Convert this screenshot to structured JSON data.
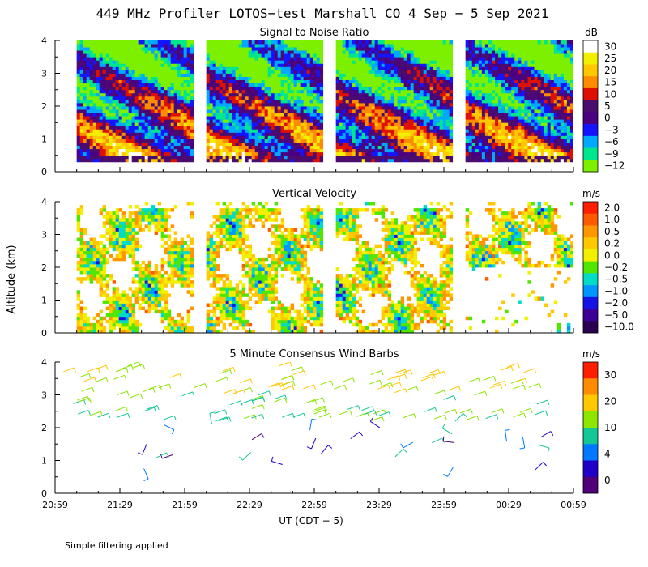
{
  "figure": {
    "title": "449 MHz Profiler LOTOS−test Marshall CO  4 Sep −  5 Sep 2021",
    "ylabel": "Altitude (km)",
    "xlabel": "UT  (CDT − 5)",
    "footnote": "Simple filtering applied"
  },
  "chart_data": [
    {
      "type": "heatmap",
      "title": "Signal to Noise Ratio",
      "unit": "dB",
      "x_ticks": [
        "20:59",
        "21:29",
        "21:59",
        "22:29",
        "22:59",
        "23:29",
        "23:59",
        "00:29",
        "00:59"
      ],
      "y_ticks": [
        "0",
        "1",
        "2",
        "3",
        "4"
      ],
      "ylim": [
        0,
        4
      ],
      "x_range_minutes": [
        0,
        240
      ],
      "data_blocks_minutes": [
        [
          10,
          64
        ],
        [
          70,
          124
        ],
        [
          130,
          184
        ],
        [
          190,
          244
        ]
      ],
      "colorbar": {
        "labels": [
          "30",
          "25",
          "20",
          "15",
          "10",
          "5",
          "0",
          "−3",
          "−6",
          "−9",
          "−12"
        ],
        "colors": [
          "#ffffff",
          "#f0f000",
          "#ffc800",
          "#ff8c00",
          "#e01000",
          "#4a0d6e",
          "#4b0082",
          "#1414ff",
          "#00a8ff",
          "#00e68c",
          "#7df000"
        ]
      }
    },
    {
      "type": "heatmap",
      "title": "Vertical Velocity",
      "unit": "m/s",
      "x_ticks": [
        "20:59",
        "21:29",
        "21:59",
        "22:29",
        "22:59",
        "23:29",
        "23:59",
        "00:29",
        "00:59"
      ],
      "y_ticks": [
        "0",
        "1",
        "2",
        "3",
        "4"
      ],
      "ylim": [
        0,
        4
      ],
      "colorbar": {
        "labels": [
          "2.0",
          "1.0",
          "0.5",
          "0.2",
          "0.0",
          "−0.2",
          "−0.5",
          "−1.0",
          "−2.0",
          "−5.0",
          "−10.0"
        ],
        "colors": [
          "#ff1e00",
          "#ff5a00",
          "#ff9600",
          "#ffc800",
          "#f0f000",
          "#50e600",
          "#00dcc8",
          "#0096ff",
          "#1414e6",
          "#3c0096",
          "#2a0050"
        ]
      }
    },
    {
      "type": "wind_barbs",
      "title": "5 Minute Consensus Wind Barbs",
      "unit": "m/s",
      "x_ticks": [
        "20:59",
        "21:29",
        "21:59",
        "22:29",
        "22:59",
        "23:29",
        "23:59",
        "00:29",
        "00:59"
      ],
      "y_ticks": [
        "0",
        "1",
        "2",
        "3",
        "4"
      ],
      "ylim": [
        0,
        4
      ],
      "colorbar": {
        "labels": [
          "30",
          "20",
          "10",
          "4",
          "0"
        ],
        "colors": [
          "#ff1e00",
          "#ff8c00",
          "#ffc800",
          "#8ce600",
          "#14c896",
          "#0078ff",
          "#1e00c8",
          "#500078"
        ]
      }
    }
  ]
}
